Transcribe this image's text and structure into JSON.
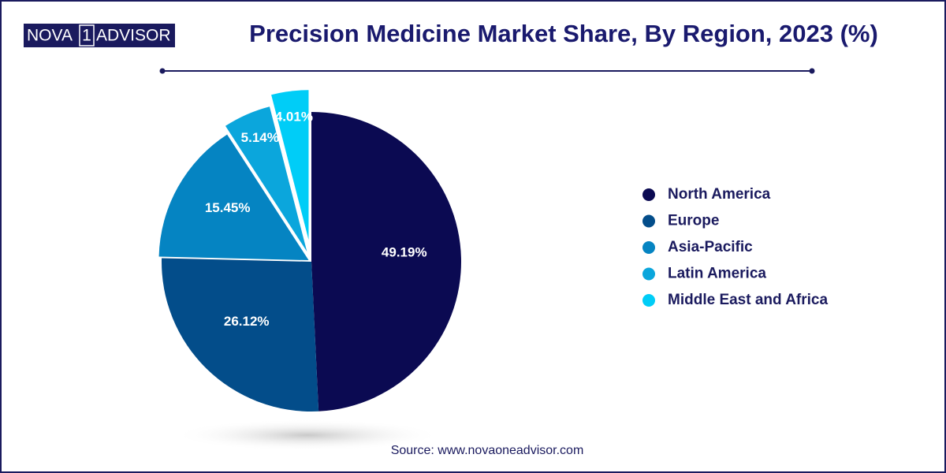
{
  "logo": {
    "left": "NOVA",
    "mark": "1",
    "right": "ADVISOR"
  },
  "chart_data": {
    "type": "pie",
    "title": "Precision Medicine Market Share, By Region, 2023 (%)",
    "categories": [
      "North America",
      "Europe",
      "Asia-Pacific",
      "Latin America",
      "Middle East and Africa"
    ],
    "values": [
      49.19,
      26.12,
      15.45,
      5.14,
      4.01
    ],
    "value_labels": [
      "49.19%",
      "26.12%",
      "15.45%",
      "5.14%",
      "4.01%"
    ],
    "colors": [
      "#0b0a52",
      "#034d8a",
      "#0584c2",
      "#0ba6dc",
      "#00cdf7"
    ],
    "legend": "right",
    "source": "Source: www.novaoneadvisor.com"
  }
}
